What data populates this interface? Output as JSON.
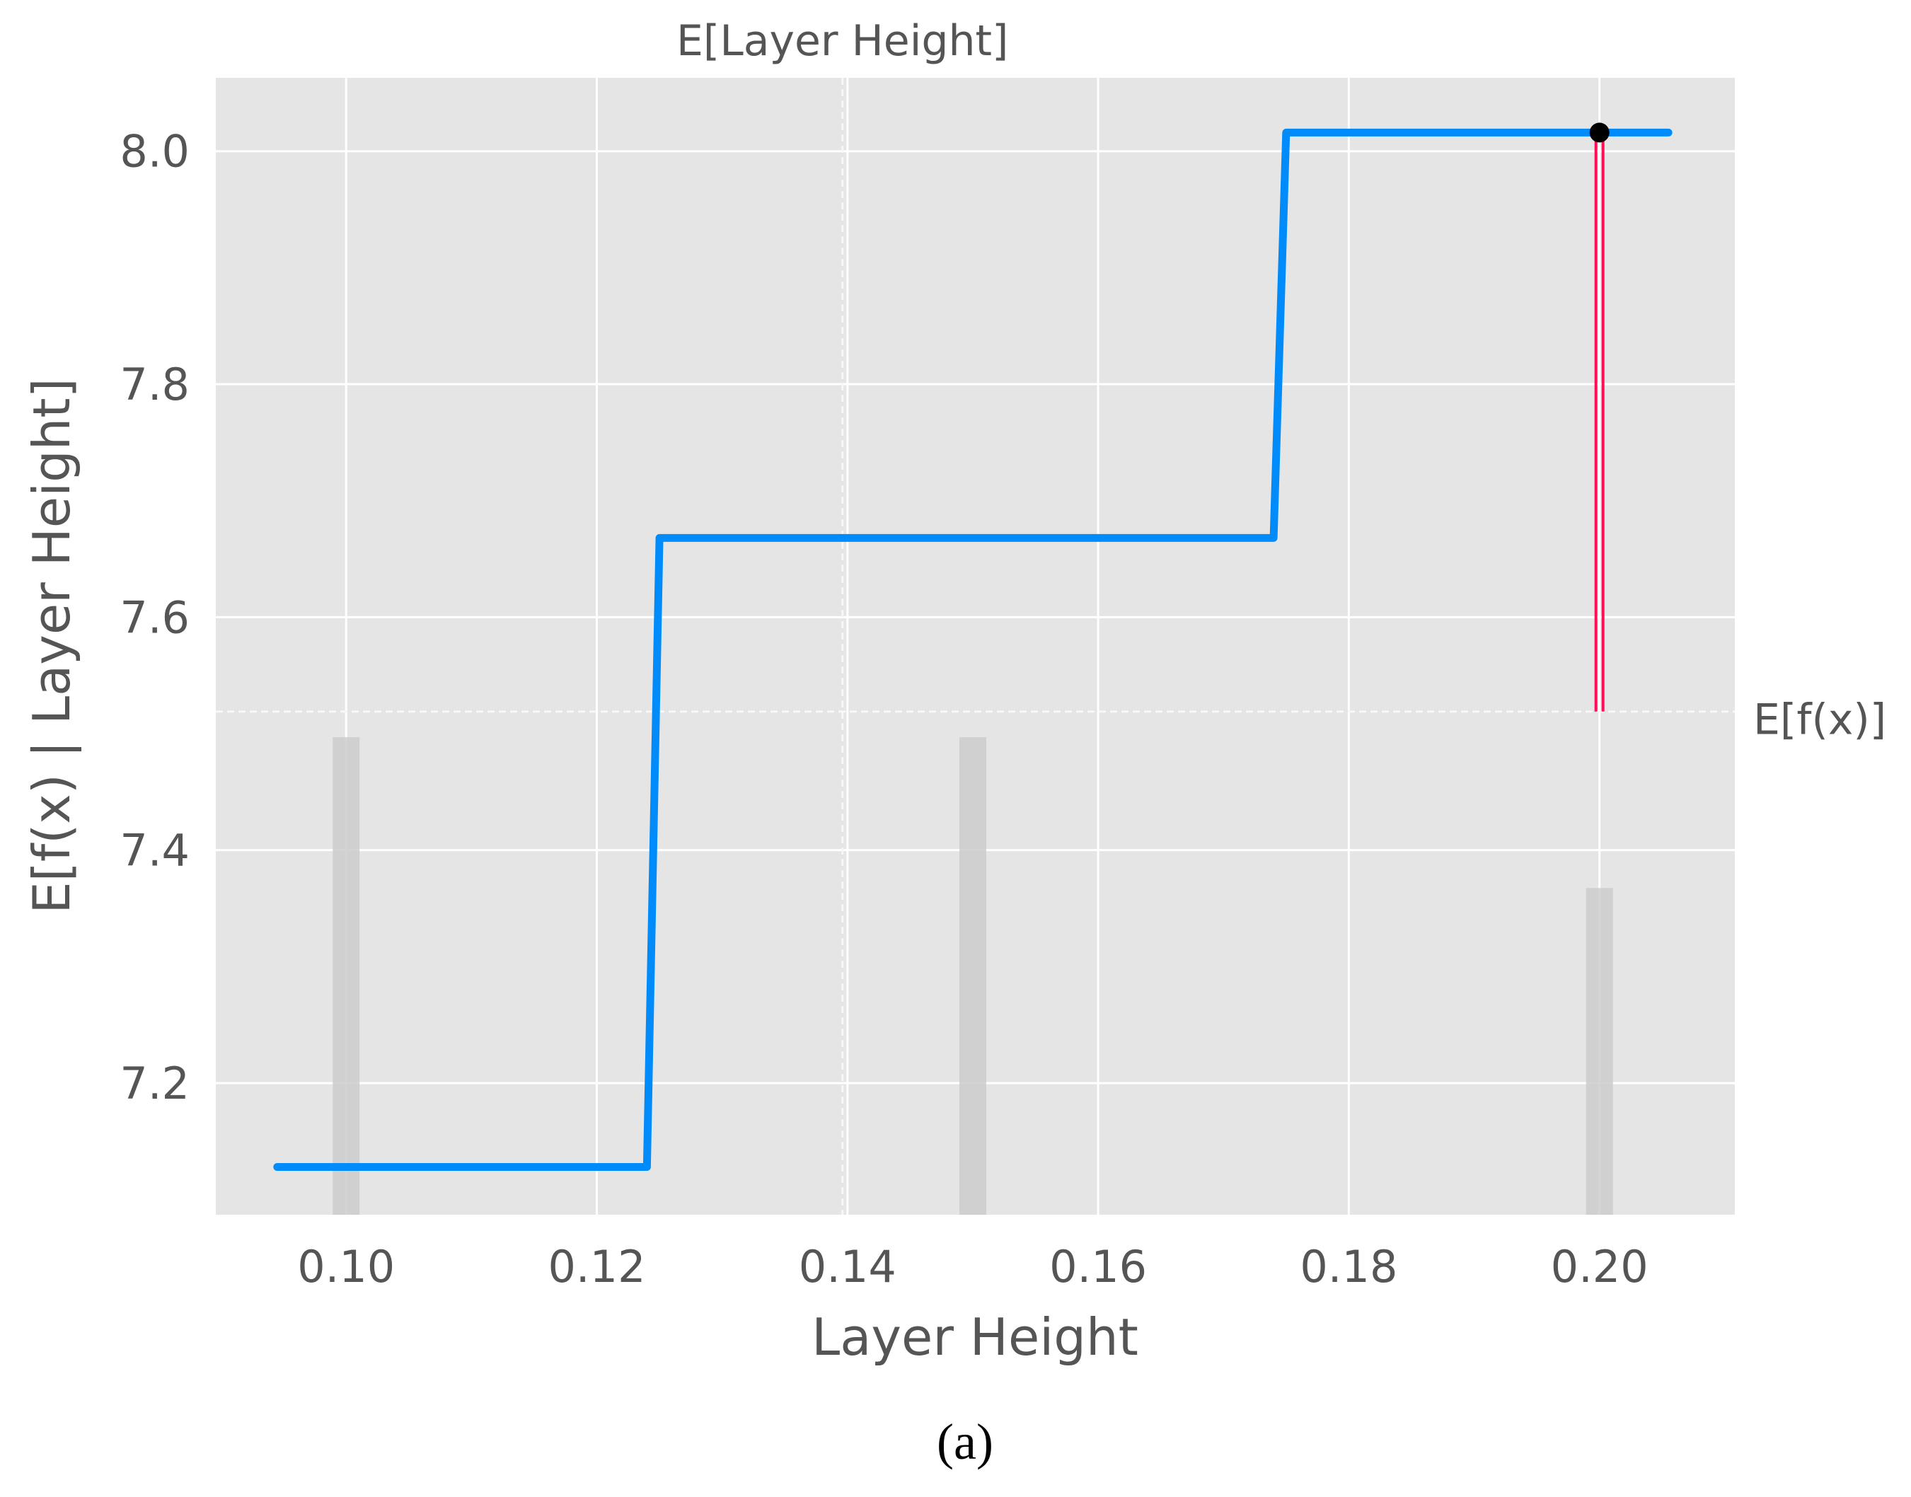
{
  "chart_data": {
    "type": "line",
    "xlabel": "Layer Height",
    "ylabel": "E[f(x) | Layer Height]",
    "xlim": [
      0.0896,
      0.2108
    ],
    "ylim": [
      7.087,
      8.063
    ],
    "x_ticks": [
      0.1,
      0.12,
      0.14,
      0.16,
      0.18,
      0.2
    ],
    "x_tick_labels": [
      "0.10",
      "0.12",
      "0.14",
      "0.16",
      "0.18",
      "0.20"
    ],
    "y_ticks": [
      7.2,
      7.4,
      7.6,
      7.8,
      8.0
    ],
    "y_tick_labels": [
      "7.2",
      "7.4",
      "7.6",
      "7.8",
      "8.0"
    ],
    "grid": true,
    "series": [
      {
        "color": "#008bfb",
        "x": [
          0.0945,
          0.124,
          0.125,
          0.174,
          0.175,
          0.2055
        ],
        "y": [
          7.128,
          7.128,
          7.668,
          7.668,
          8.016,
          8.016
        ]
      }
    ],
    "histogram": {
      "color": "#cccccc",
      "bars": [
        {
          "x": 0.1,
          "count": 19
        },
        {
          "x": 0.15,
          "count": 19
        },
        {
          "x": 0.2,
          "count": 13
        }
      ]
    },
    "reference_lines": {
      "expected_x": {
        "value": 0.1396,
        "label": "E[Layer Height]"
      },
      "expected_y": {
        "value": 7.519,
        "label": "E[f(x)]"
      }
    },
    "highlight": {
      "point": {
        "x": 0.2,
        "y": 8.016
      },
      "segment_color": "#ff0d57",
      "segment_from_y": 7.519,
      "segment_to_y": 8.016
    },
    "colors": {
      "plot_background": "#e5e5e5",
      "grid": "#ffffff",
      "line": "#008bfb",
      "point": "#000000",
      "highlight": "#ff0d57"
    }
  },
  "caption": "(a)"
}
